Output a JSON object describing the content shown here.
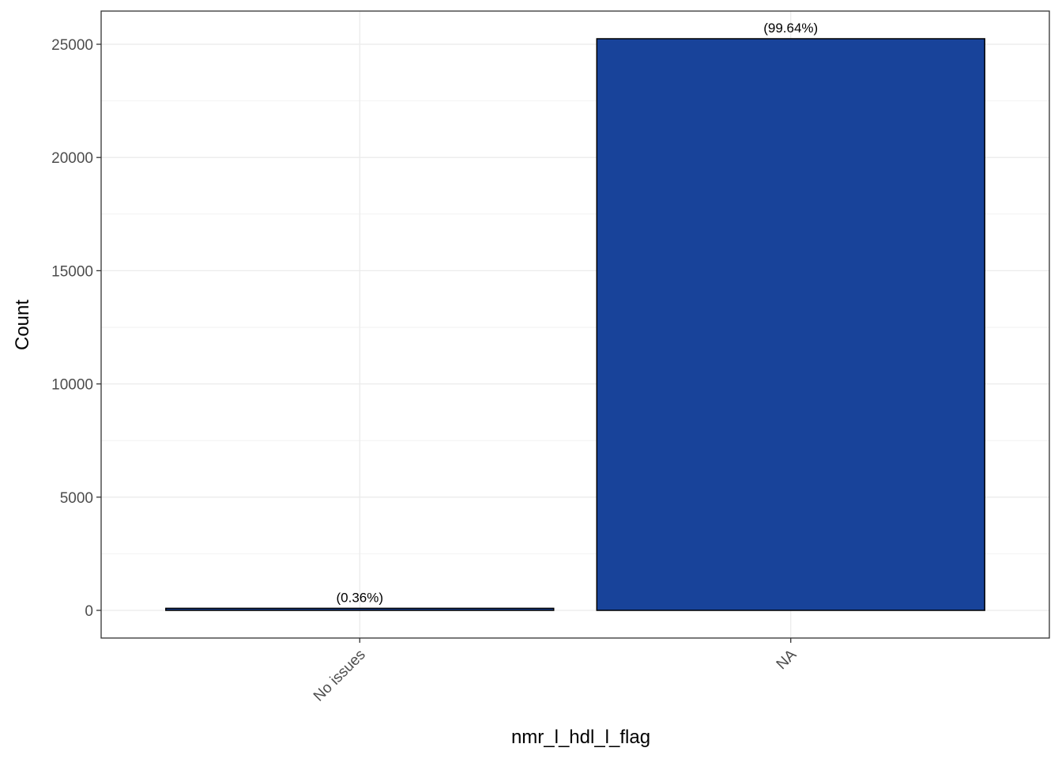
{
  "chart_data": {
    "type": "bar",
    "x_label": "nmr_l_hdl_l_flag",
    "y_label": "Count",
    "categories": [
      "No issues",
      "NA"
    ],
    "values": [
      91,
      25244
    ],
    "bar_labels": [
      "(0.36%)",
      "(99.64%)"
    ],
    "color": "#18439a",
    "ylim": [
      -1222,
      26466
    ],
    "yticks": [
      0,
      5000,
      10000,
      15000,
      20000,
      25000
    ],
    "grid": true
  }
}
